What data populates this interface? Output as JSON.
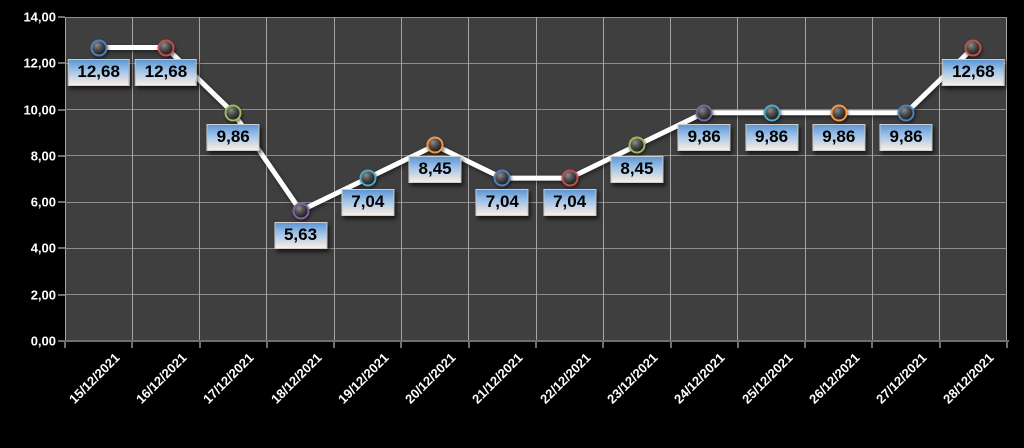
{
  "chart_data": {
    "type": "line",
    "title": "",
    "xlabel": "",
    "ylabel": "",
    "legend": "none",
    "grid": true,
    "categories": [
      "15/12/2021",
      "16/12/2021",
      "17/12/2021",
      "18/12/2021",
      "19/12/2021",
      "20/12/2021",
      "21/12/2021",
      "22/12/2021",
      "23/12/2021",
      "24/12/2021",
      "25/12/2021",
      "26/12/2021",
      "27/12/2021",
      "28/12/2021"
    ],
    "values": [
      12.68,
      12.68,
      9.86,
      5.63,
      7.04,
      8.45,
      7.04,
      7.04,
      8.45,
      9.86,
      9.86,
      9.86,
      9.86,
      12.68
    ],
    "values_display": [
      "12,68",
      "12,68",
      "9,86",
      "5,63",
      "7,04",
      "8,45",
      "7,04",
      "7,04",
      "8,45",
      "9,86",
      "9,86",
      "9,86",
      "9,86",
      "12,68"
    ],
    "ylim": [
      0,
      14
    ],
    "y_ticks": [
      {
        "value": 0,
        "label": "0,00"
      },
      {
        "value": 2,
        "label": "2,00"
      },
      {
        "value": 4,
        "label": "4,00"
      },
      {
        "value": 6,
        "label": "6,00"
      },
      {
        "value": 8,
        "label": "8,00"
      },
      {
        "value": 10,
        "label": "10,00"
      },
      {
        "value": 12,
        "label": "12,00"
      },
      {
        "value": 14,
        "label": "14,00"
      }
    ],
    "line_color": "#FFFFFF",
    "marker_ring_colors": [
      "#4F81BD",
      "#C0504D",
      "#9BBB59",
      "#8064A2",
      "#4BACC6",
      "#F79646",
      "#4F81BD",
      "#C0504D",
      "#9BBB59",
      "#8064A2",
      "#4BACC6",
      "#F79646",
      "#4F81BD",
      "#C0504D"
    ],
    "colors": {
      "outer_background": "#000000",
      "plot_background": "#3F3F3F",
      "gridline_horizontal": "#8E8E8E",
      "gridline_vertical": "#A5A5A5",
      "axis_line": "#6E6E6E",
      "axis_text": "#FFFFFF",
      "data_label_text": "#000000",
      "data_label_gradient_top": "#5E97D3",
      "data_label_gradient_bottom": "#F5EEEB",
      "data_label_border": "#CFCFCF"
    }
  }
}
